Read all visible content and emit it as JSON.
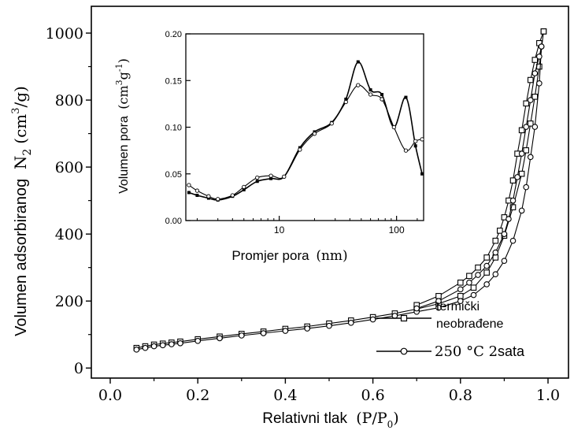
{
  "chart_data": [
    {
      "type": "line",
      "xlabel": "Relativni tlak",
      "xlabel_math": "(P/P",
      "xlabel_sub": "0",
      "xlabel_close": ")",
      "ylabel": "Volumen adsorbiranog",
      "ylabel_math": "N",
      "ylabel_sub": "2",
      "ylabel_unit_open": "(cm",
      "ylabel_unit_sup": "3",
      "ylabel_unit_close": "/g)",
      "xlim": [
        0.0,
        1.0
      ],
      "ylim": [
        -30,
        1080
      ],
      "x_ticks": [
        "0.0",
        "0.2",
        "0.4",
        "0.6",
        "0.8",
        "1.0"
      ],
      "y_ticks": [
        "0",
        "200",
        "400",
        "600",
        "800",
        "1000"
      ],
      "legend_placement": "bottom-right",
      "series": [
        {
          "name": "termički neobrađene",
          "marker": "square",
          "adsorption": {
            "x": [
              0.06,
              0.08,
              0.1,
              0.12,
              0.14,
              0.16,
              0.2,
              0.25,
              0.3,
              0.35,
              0.4,
              0.45,
              0.5,
              0.55,
              0.6,
              0.65,
              0.7,
              0.75,
              0.8,
              0.83,
              0.86,
              0.88,
              0.9,
              0.92,
              0.94,
              0.95,
              0.96,
              0.97,
              0.98,
              0.99
            ],
            "y": [
              60,
              65,
              70,
              73,
              76,
              79,
              86,
              94,
              102,
              109,
              117,
              124,
              133,
              142,
              152,
              163,
              176,
              192,
              215,
              240,
              285,
              330,
              395,
              480,
              580,
              650,
              730,
              810,
              900,
              1005
            ]
          },
          "desorption": {
            "x": [
              0.99,
              0.98,
              0.97,
              0.96,
              0.95,
              0.94,
              0.93,
              0.92,
              0.91,
              0.9,
              0.89,
              0.88,
              0.86,
              0.84,
              0.82,
              0.8,
              0.75,
              0.7
            ],
            "y": [
              1005,
              970,
              920,
              860,
              790,
              710,
              640,
              560,
              500,
              450,
              410,
              380,
              330,
              300,
              275,
              255,
              215,
              188
            ]
          }
        },
        {
          "name": "250 °C 2sata",
          "marker": "circle",
          "adsorption": {
            "x": [
              0.06,
              0.08,
              0.1,
              0.12,
              0.14,
              0.16,
              0.2,
              0.25,
              0.3,
              0.35,
              0.4,
              0.45,
              0.5,
              0.55,
              0.6,
              0.65,
              0.7,
              0.75,
              0.8,
              0.83,
              0.86,
              0.88,
              0.9,
              0.92,
              0.94,
              0.95,
              0.96,
              0.97,
              0.98,
              0.985
            ],
            "y": [
              55,
              60,
              65,
              68,
              71,
              74,
              81,
              89,
              97,
              104,
              111,
              118,
              126,
              135,
              145,
              156,
              168,
              180,
              200,
              218,
              250,
              280,
              320,
              380,
              470,
              540,
              630,
              720,
              850,
              960
            ]
          },
          "desorption": {
            "x": [
              0.985,
              0.98,
              0.97,
              0.96,
              0.95,
              0.94,
              0.93,
              0.92,
              0.91,
              0.9,
              0.88,
              0.86,
              0.84,
              0.82,
              0.8,
              0.75,
              0.7
            ],
            "y": [
              960,
              930,
              880,
              800,
              720,
              640,
              570,
              500,
              445,
              400,
              345,
              305,
              278,
              255,
              235,
              200,
              178
            ]
          }
        }
      ]
    },
    {
      "type": "line",
      "xlabel": "Promjer pora",
      "xlabel_unit": "(nm)",
      "ylabel": "Volumen pora",
      "ylabel_unit_open": "(cm",
      "ylabel_unit_sup": "3",
      "ylabel_unit_mid": "g",
      "ylabel_unit_sup2": "-1",
      "ylabel_unit_close": ")",
      "x_scale": "log",
      "xlim": [
        1.6,
        170
      ],
      "ylim": [
        0.0,
        0.2
      ],
      "x_ticks": [
        "10",
        "100"
      ],
      "x_tick_values": [
        10,
        100
      ],
      "y_ticks": [
        "0.00",
        "0.05",
        "0.10",
        "0.15",
        "0.20"
      ],
      "y_tick_values": [
        0.0,
        0.05,
        0.1,
        0.15,
        0.2
      ],
      "series": [
        {
          "marker": "square",
          "x": [
            1.7,
            2.0,
            2.5,
            3.0,
            4.0,
            5.0,
            6.5,
            8.5,
            11,
            15,
            20,
            28,
            37,
            47,
            60,
            75,
            95,
            120,
            145,
            165
          ],
          "y": [
            0.03,
            0.027,
            0.024,
            0.022,
            0.026,
            0.033,
            0.042,
            0.045,
            0.047,
            0.078,
            0.095,
            0.105,
            0.13,
            0.17,
            0.14,
            0.135,
            0.1,
            0.132,
            0.08,
            0.05
          ]
        },
        {
          "marker": "circle",
          "x": [
            1.7,
            2.0,
            2.5,
            3.0,
            4.0,
            5.0,
            6.5,
            8.5,
            11,
            15,
            20,
            28,
            37,
            47,
            60,
            75,
            95,
            120,
            145,
            165
          ],
          "y": [
            0.038,
            0.032,
            0.026,
            0.023,
            0.027,
            0.036,
            0.046,
            0.048,
            0.047,
            0.076,
            0.093,
            0.104,
            0.127,
            0.145,
            0.135,
            0.13,
            0.1,
            0.075,
            0.085,
            0.087
          ]
        }
      ]
    }
  ]
}
